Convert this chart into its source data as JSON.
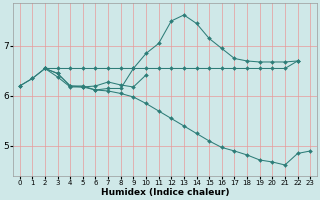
{
  "xlabel": "Humidex (Indice chaleur)",
  "bg_color": "#cfe8e8",
  "grid_color": "#e89999",
  "line_color": "#2d7d78",
  "xlim": [
    -0.5,
    23.5
  ],
  "ylim": [
    4.4,
    7.85
  ],
  "yticks": [
    5,
    6,
    7
  ],
  "xticks": [
    0,
    1,
    2,
    3,
    4,
    5,
    6,
    7,
    8,
    9,
    10,
    11,
    12,
    13,
    14,
    15,
    16,
    17,
    18,
    19,
    20,
    21,
    22,
    23
  ],
  "figwidth": 3.2,
  "figheight": 2.0,
  "series": [
    {
      "x": [
        0,
        1,
        2,
        3,
        4,
        5,
        6,
        7,
        8,
        9,
        10,
        11,
        12,
        13,
        14,
        15,
        16,
        17,
        18,
        19,
        20,
        21,
        22,
        23
      ],
      "y": [
        6.2,
        6.35,
        6.55,
        6.45,
        6.2,
        6.18,
        6.12,
        6.1,
        6.05,
        5.98,
        5.85,
        5.7,
        5.55,
        5.4,
        5.25,
        5.1,
        4.97,
        4.9,
        4.82,
        4.72,
        4.68,
        4.62,
        4.85,
        4.9
      ]
    },
    {
      "x": [
        0,
        1,
        2,
        3,
        4,
        5,
        6,
        7,
        8,
        9,
        10,
        11,
        12,
        13,
        14,
        15,
        16,
        17,
        18,
        19,
        20,
        21,
        22
      ],
      "y": [
        6.2,
        6.35,
        6.55,
        6.55,
        6.55,
        6.55,
        6.55,
        6.55,
        6.55,
        6.55,
        6.55,
        6.55,
        6.55,
        6.55,
        6.55,
        6.55,
        6.55,
        6.55,
        6.55,
        6.55,
        6.55,
        6.55,
        6.7
      ]
    },
    {
      "x": [
        2,
        3,
        4,
        5,
        6,
        7,
        8,
        9,
        10,
        11,
        12,
        13,
        14,
        15,
        16,
        17,
        18,
        19,
        20,
        21,
        22
      ],
      "y": [
        6.55,
        6.45,
        6.2,
        6.2,
        6.12,
        6.15,
        6.15,
        6.55,
        6.85,
        7.05,
        7.5,
        7.62,
        7.45,
        7.15,
        6.95,
        6.75,
        6.7,
        6.68,
        6.68,
        6.68,
        6.7
      ]
    },
    {
      "x": [
        2,
        3,
        4,
        5,
        6,
        7,
        8,
        9,
        10
      ],
      "y": [
        6.55,
        6.38,
        6.18,
        6.18,
        6.2,
        6.28,
        6.22,
        6.18,
        6.42
      ]
    }
  ]
}
